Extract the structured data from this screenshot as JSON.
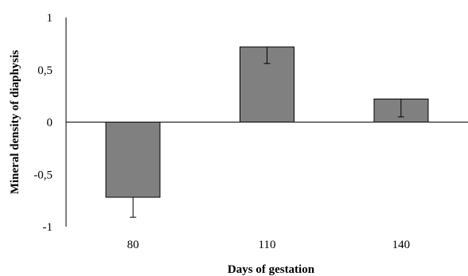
{
  "chart_data": {
    "type": "bar",
    "categories": [
      "80",
      "110",
      "140"
    ],
    "values": [
      -0.72,
      0.72,
      0.22
    ],
    "errors": [
      0.19,
      0.16,
      0.17
    ],
    "xlabel": "Days of gestation",
    "ylabel": "Mineral density of diaphysis",
    "ylim": [
      -1,
      1
    ],
    "yticks": [
      1,
      0.5,
      0,
      -0.5,
      -1
    ],
    "ytick_labels": [
      "1",
      "0,5",
      "0",
      "-0,5",
      "-1"
    ],
    "grid": false,
    "legend": "none",
    "bar_color": "#808080",
    "bar_edge_color": "#000000"
  }
}
